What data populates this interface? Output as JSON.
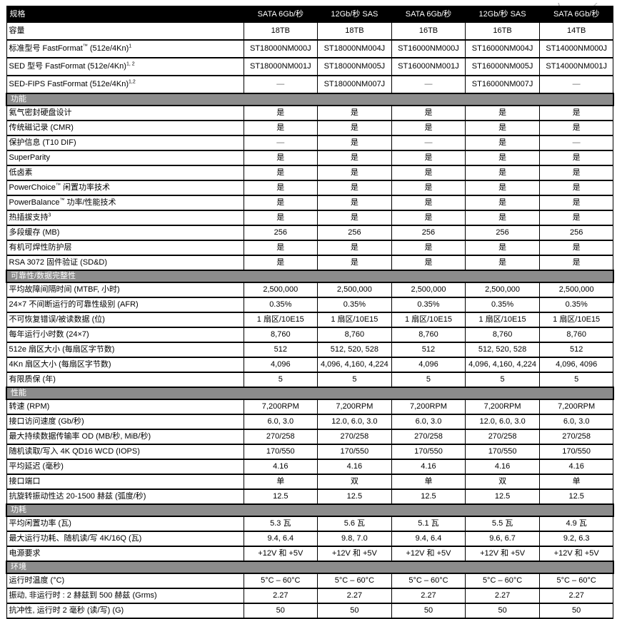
{
  "colors": {
    "header_bg": "#000000",
    "header_text": "#ffffff",
    "section_bg": "#8c8c8c",
    "section_text": "#ffffff",
    "border": "#000000",
    "dash": "#666666"
  },
  "decoration": {
    "name": "cropped-photo-edge"
  },
  "table": {
    "spec_header": "规格",
    "columns": [
      "SATA 6Gb/秒",
      "12Gb/秒 SAS",
      "SATA 6Gb/秒",
      "12Gb/秒 SAS",
      "SATA 6Gb/秒"
    ],
    "sections": [
      {
        "title": null,
        "rows": [
          {
            "label": "容量",
            "values": [
              "18TB",
              "18TB",
              "16TB",
              "16TB",
              "14TB"
            ],
            "top": true
          },
          {
            "parts": [
              [
                "标准型号 FastFormat",
                false
              ],
              [
                "™",
                true
              ],
              [
                " (512e/4Kn)",
                false
              ],
              [
                "1",
                true
              ]
            ],
            "values": [
              "ST18000NM000J",
              "ST18000NM004J",
              "ST16000NM000J",
              "ST16000NM004J",
              "ST14000NM000J"
            ],
            "top": true
          },
          {
            "parts": [
              [
                "SED 型号 FastFormat (512e/4Kn)",
                false
              ],
              [
                "1, 2",
                true
              ]
            ],
            "values": [
              "ST18000NM001J",
              "ST18000NM005J",
              "ST16000NM001J",
              "ST16000NM005J",
              "ST14000NM001J"
            ],
            "top": true
          },
          {
            "parts": [
              [
                "SED-FIPS FastFormat (512e/4Kn)",
                false
              ],
              [
                "1,2",
                true
              ]
            ],
            "values": [
              "—",
              "ST18000NM007J",
              "—",
              "ST16000NM007J",
              "—"
            ],
            "top": true
          }
        ]
      },
      {
        "title": "功能",
        "rows": [
          {
            "label": "氦气密封硬盘设计",
            "values": [
              "是",
              "是",
              "是",
              "是",
              "是"
            ]
          },
          {
            "label": "传统磁记录 (CMR)",
            "values": [
              "是",
              "是",
              "是",
              "是",
              "是"
            ]
          },
          {
            "label": "保护信息 (T10 DIF)",
            "values": [
              "—",
              "是",
              "—",
              "是",
              "—"
            ]
          },
          {
            "label": "SuperParity",
            "values": [
              "是",
              "是",
              "是",
              "是",
              "是"
            ]
          },
          {
            "label": "低卤素",
            "values": [
              "是",
              "是",
              "是",
              "是",
              "是"
            ]
          },
          {
            "parts": [
              [
                "PowerChoice",
                false
              ],
              [
                "™",
                true
              ],
              [
                " 闲置功率技术",
                false
              ]
            ],
            "values": [
              "是",
              "是",
              "是",
              "是",
              "是"
            ]
          },
          {
            "parts": [
              [
                "PowerBalance",
                false
              ],
              [
                "™",
                true
              ],
              [
                " 功率/性能技术",
                false
              ]
            ],
            "values": [
              "是",
              "是",
              "是",
              "是",
              "是"
            ]
          },
          {
            "parts": [
              [
                "热插拔支持",
                false
              ],
              [
                "3",
                true
              ]
            ],
            "values": [
              "是",
              "是",
              "是",
              "是",
              "是"
            ]
          },
          {
            "label": "多段缓存 (MB)",
            "values": [
              "256",
              "256",
              "256",
              "256",
              "256"
            ]
          },
          {
            "label": "有机可焊性防护层",
            "values": [
              "是",
              "是",
              "是",
              "是",
              "是"
            ]
          },
          {
            "label": "RSA 3072 固件验证 (SD&D)",
            "values": [
              "是",
              "是",
              "是",
              "是",
              "是"
            ]
          }
        ]
      },
      {
        "title": "可靠性/数据完整性",
        "rows": [
          {
            "label": "平均故障间隔时间 (MTBF, 小时)",
            "values": [
              "2,500,000",
              "2,500,000",
              "2,500,000",
              "2,500,000",
              "2,500,000"
            ]
          },
          {
            "label": "24×7 不间断运行的可靠性级别 (AFR)",
            "values": [
              "0.35%",
              "0.35%",
              "0.35%",
              "0.35%",
              "0.35%"
            ]
          },
          {
            "label": "不可恢复错误/被读数据 (位)",
            "values": [
              "1 扇区/10E15",
              "1 扇区/10E15",
              "1 扇区/10E15",
              "1 扇区/10E15",
              "1 扇区/10E15"
            ]
          },
          {
            "label": "每年运行小时数 (24×7)",
            "values": [
              "8,760",
              "8,760",
              "8,760",
              "8,760",
              "8,760"
            ]
          },
          {
            "label": "512e 扇区大小 (每扇区字节数)",
            "values": [
              "512",
              "512, 520, 528",
              "512",
              "512, 520, 528",
              "512"
            ]
          },
          {
            "label": "4Kn 扇区大小 (每扇区字节数)",
            "values": [
              "4,096",
              "4,096, 4,160, 4,224",
              "4,096",
              "4,096, 4,160, 4,224",
              "4,096, 4096"
            ]
          },
          {
            "label": "有限质保 (年)",
            "values": [
              "5",
              "5",
              "5",
              "5",
              "5"
            ]
          }
        ]
      },
      {
        "title": "性能",
        "rows": [
          {
            "label": "转速 (RPM)",
            "values": [
              "7,200RPM",
              "7,200RPM",
              "7,200RPM",
              "7,200RPM",
              "7,200RPM"
            ]
          },
          {
            "label": "接口访问速度 (Gb/秒)",
            "values": [
              "6.0, 3.0",
              "12.0, 6.0, 3.0",
              "6.0, 3.0",
              "12.0, 6.0, 3.0",
              "6.0, 3.0"
            ]
          },
          {
            "label": "最大持续数据传输率 OD (MB/秒, MiB/秒)",
            "values": [
              "270/258",
              "270/258",
              "270/258",
              "270/258",
              "270/258"
            ]
          },
          {
            "label": "随机读取/写入 4K QD16 WCD (IOPS)",
            "values": [
              "170/550",
              "170/550",
              "170/550",
              "170/550",
              "170/550"
            ]
          },
          {
            "label": "平均延迟 (毫秒)",
            "values": [
              "4.16",
              "4.16",
              "4.16",
              "4.16",
              "4.16"
            ]
          },
          {
            "label": "接口端口",
            "values": [
              "单",
              "双",
              "单",
              "双",
              "单"
            ]
          },
          {
            "label": "抗旋转振动性达 20-1500 赫兹 (弧度/秒)",
            "values": [
              "12.5",
              "12.5",
              "12.5",
              "12.5",
              "12.5"
            ]
          }
        ]
      },
      {
        "title": "功耗",
        "rows": [
          {
            "label": "平均闲置功率 (瓦)",
            "values": [
              "5.3 瓦",
              "5.6 瓦",
              "5.1 瓦",
              "5.5 瓦",
              "4.9 瓦"
            ]
          },
          {
            "label": "最大运行功耗、随机读/写 4K/16Q (瓦)",
            "values": [
              "9.4, 6.4",
              "9.8, 7.0",
              "9.4, 6.4",
              "9.6, 6.7",
              "9.2, 6.3"
            ]
          },
          {
            "label": "电源要求",
            "values": [
              "+12V 和 +5V",
              "+12V 和 +5V",
              "+12V 和 +5V",
              "+12V 和 +5V",
              "+12V 和 +5V"
            ]
          }
        ]
      },
      {
        "title": "环境",
        "rows": [
          {
            "label": "运行时温度 (°C)",
            "values": [
              "5°C – 60°C",
              "5°C – 60°C",
              "5°C – 60°C",
              "5°C – 60°C",
              "5°C – 60°C"
            ]
          },
          {
            "label": "振动, 非运行时 : 2 赫兹到 500 赫兹 (Grms)",
            "values": [
              "2.27",
              "2.27",
              "2.27",
              "2.27",
              "2.27"
            ]
          },
          {
            "label": "抗冲性, 运行时 2 毫秒 (读/写) (G)",
            "values": [
              "50",
              "50",
              "50",
              "50",
              "50"
            ]
          }
        ]
      }
    ]
  }
}
